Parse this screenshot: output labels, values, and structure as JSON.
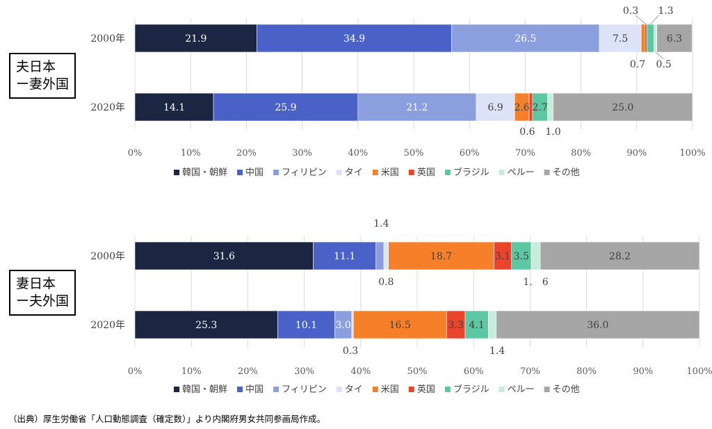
{
  "colors": {
    "韓国・朝鮮": "#1c2541",
    "中国": "#4a62c8",
    "フィリピン": "#8b9fdf",
    "タイ": "#dde3f6",
    "米国": "#f6802a",
    "英国": "#e8452c",
    "ブラジル": "#5dc6a3",
    "ペルー": "#c7ecdb",
    "その他": "#a6a6a6"
  },
  "chart_data": [
    {
      "type": "bar",
      "orientation": "horizontal-stacked-100",
      "group_label": [
        "夫日本",
        "ー妻外国"
      ],
      "categories": [
        "2000年",
        "2020年"
      ],
      "series": [
        {
          "name": "韓国・朝鮮",
          "values": [
            21.9,
            14.1
          ]
        },
        {
          "name": "中国",
          "values": [
            34.9,
            25.9
          ]
        },
        {
          "name": "フィリピン",
          "values": [
            26.5,
            21.2
          ]
        },
        {
          "name": "タイ",
          "values": [
            7.5,
            6.9
          ]
        },
        {
          "name": "米国",
          "values": [
            0.7,
            2.6
          ]
        },
        {
          "name": "英国",
          "values": [
            0.3,
            0.6
          ]
        },
        {
          "name": "ブラジル",
          "values": [
            1.3,
            2.7
          ]
        },
        {
          "name": "ペルー",
          "values": [
            0.5,
            1.0
          ]
        },
        {
          "name": "その他",
          "values": [
            6.3,
            25.0
          ]
        }
      ],
      "x_ticks": [
        "0%",
        "10%",
        "20%",
        "30%",
        "40%",
        "50%",
        "60%",
        "70%",
        "80%",
        "90%",
        "100%"
      ],
      "xlim": [
        0,
        100
      ],
      "legend_position": "bottom"
    },
    {
      "type": "bar",
      "orientation": "horizontal-stacked-100",
      "group_label": [
        "妻日本",
        "ー夫外国"
      ],
      "categories": [
        "2000年",
        "2020年"
      ],
      "series": [
        {
          "name": "韓国・朝鮮",
          "values": [
            31.6,
            25.3
          ]
        },
        {
          "name": "中国",
          "values": [
            11.1,
            10.1
          ]
        },
        {
          "name": "フィリピン",
          "values": [
            1.4,
            3.0
          ]
        },
        {
          "name": "タイ",
          "values": [
            0.8,
            0.3
          ]
        },
        {
          "name": "米国",
          "values": [
            18.7,
            16.5
          ]
        },
        {
          "name": "英国",
          "values": [
            3.1,
            3.3
          ]
        },
        {
          "name": "ブラジル",
          "values": [
            3.5,
            4.1
          ]
        },
        {
          "name": "ペルー",
          "values": [
            1.6,
            1.4
          ]
        },
        {
          "name": "その他",
          "values": [
            28.2,
            36.0
          ]
        }
      ],
      "x_ticks": [
        "0%",
        "10%",
        "20%",
        "30%",
        "40%",
        "50%",
        "60%",
        "70%",
        "80%",
        "90%",
        "100%"
      ],
      "xlim": [
        0,
        100
      ],
      "legend_position": "bottom"
    }
  ],
  "callouts": [
    [
      [
        "",
        "",
        "",
        "",
        "0.7",
        "0.3",
        "1.3",
        "0.5",
        ""
      ],
      [
        "",
        "",
        "",
        "",
        "",
        "0.6",
        "",
        "1.0",
        ""
      ]
    ],
    [
      [
        "",
        "",
        "1.4",
        "0.8",
        "",
        "",
        "",
        "1.　6",
        ""
      ],
      [
        "",
        "",
        "",
        "0.3",
        "",
        "",
        "",
        "1.4",
        ""
      ]
    ]
  ],
  "source_note": "（出典）厚生労働省「人口動態調査（確定数）」より内閣府男女共同参画局作成。"
}
